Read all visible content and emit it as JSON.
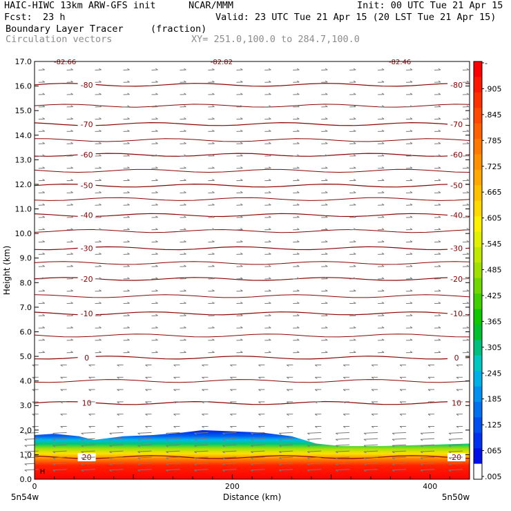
{
  "header": {
    "model": "HAIC-HIWC 13km ARW-GFS init",
    "org": "NCAR/MMM",
    "init": "Init: 00 UTC Tue 21 Apr 15",
    "fcst_label": "Fcst:",
    "fcst_value": "23 h",
    "valid": "Valid: 23 UTC Tue 21 Apr 15 (20 LST Tue 21 Apr 15)",
    "field": "Boundary Layer Tracer",
    "field_units": "(fraction)",
    "vector_field": "Circulation vectors",
    "xy_range": "XY= 251.0,100.0 to 284.7,100.0"
  },
  "chart_data": {
    "type": "heatmap",
    "xlabel": "Distance (km)",
    "ylabel": "Height (km)",
    "xlim": [
      0,
      440
    ],
    "ylim": [
      0,
      17
    ],
    "xticks": [
      0,
      200,
      400
    ],
    "yticks": [
      "0.0",
      "1.0",
      "2.0",
      "3.0",
      "4.0",
      "5.0",
      "6.0",
      "7.0",
      "8.0",
      "9.0",
      "10.0",
      "11.0",
      "12.0",
      "13.0",
      "14.0",
      "15.0",
      "16.0",
      "17.0"
    ],
    "corner_left": "5n54w",
    "corner_right": "5n50w",
    "surface_marker": "H",
    "colorbar": {
      "labels": [
        "-",
        ".905",
        ".845",
        ".785",
        ".725",
        ".665",
        ".605",
        ".545",
        ".485",
        ".425",
        ".365",
        ".305",
        ".245",
        ".185",
        ".125",
        ".065",
        ".005"
      ],
      "colors": [
        "#ff0000",
        "#ff1800",
        "#ff3000",
        "#ff4800",
        "#ff6000",
        "#ff7800",
        "#ff9000",
        "#ffa800",
        "#ffc000",
        "#ffd800",
        "#fff000",
        "#e0f000",
        "#c0e800",
        "#a0e000",
        "#70d800",
        "#40d000",
        "#10c800",
        "#00c030",
        "#00c080",
        "#00c8c0",
        "#00b0e8",
        "#0090f0",
        "#0070f0",
        "#0050f0",
        "#0030f0",
        "#0010e8",
        "#ffffff"
      ]
    },
    "tracer_top_km": [
      [
        0,
        1.8
      ],
      [
        20,
        1.85
      ],
      [
        45,
        1.75
      ],
      [
        60,
        1.6
      ],
      [
        90,
        1.75
      ],
      [
        120,
        1.8
      ],
      [
        150,
        1.9
      ],
      [
        170,
        2.0
      ],
      [
        200,
        1.95
      ],
      [
        230,
        1.9
      ],
      [
        260,
        1.75
      ],
      [
        285,
        1.45
      ],
      [
        310,
        1.35
      ],
      [
        350,
        1.35
      ],
      [
        400,
        1.4
      ],
      [
        440,
        1.45
      ]
    ],
    "temperature_contours": [
      {
        "label": "-80",
        "height_km": 16.05
      },
      {
        "label": "-70",
        "height_km": 14.45
      },
      {
        "label": "-60",
        "height_km": 13.2
      },
      {
        "label": "-50",
        "height_km": 11.95
      },
      {
        "label": "-40",
        "height_km": 10.75
      },
      {
        "label": "-30",
        "height_km": 9.4
      },
      {
        "label": "-20",
        "height_km": 8.15
      },
      {
        "label": "-10",
        "height_km": 6.75
      },
      {
        "label": "0",
        "height_km": 4.95
      },
      {
        "label": "10",
        "height_km": 3.1
      },
      {
        "label": "20",
        "height_km": 0.9
      }
    ],
    "extra_contour_heights_km": [
      15.2,
      13.8,
      12.55,
      11.4,
      10.1,
      8.8,
      7.45,
      5.85,
      4.0
    ],
    "top_labels": [
      "-82.66",
      "-82.82",
      "-82.46"
    ]
  }
}
